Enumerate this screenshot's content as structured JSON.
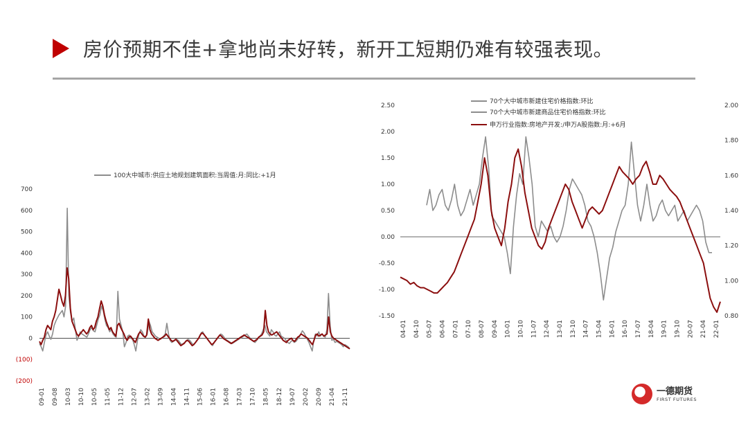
{
  "title": "房价预期不佳+拿地尚未好转，新开工短期仍难有较强表现。",
  "colors": {
    "accent": "#c00000",
    "gray_series": "#8c8c8c",
    "red_series": "#8b0e0e",
    "rule": "#a6a6a6"
  },
  "logo": {
    "name_cn": "一德期货",
    "name_en": "FIRST FUTURES",
    "icon": "globe-logo-icon"
  },
  "chart_data": [
    {
      "type": "line",
      "legend": [
        "100大中城市:供应土地规划建筑面积:当周值:月:同比:+1月"
      ],
      "legend_placement": "top",
      "ylim": [
        -200,
        700
      ],
      "yticks": [
        "700",
        "600",
        "500",
        "400",
        "300",
        "200",
        "100",
        "0",
        "(100)",
        "(200)"
      ],
      "xticks": [
        "09-01",
        "09-08",
        "10-03",
        "10-10",
        "10-05",
        "11-05",
        "11-12",
        "12-07",
        "13-02",
        "13-09",
        "14-04",
        "14-11",
        "15-06",
        "16-01",
        "16-08",
        "17-03",
        "17-10",
        "18-05",
        "18-12",
        "19-07",
        "20-02",
        "20-09",
        "21-04",
        "21-11"
      ],
      "series": [
        {
          "name": "100大中城市:供应土地规划建筑面积:当周值:月:同比:+1月",
          "color": "gray",
          "values": [
            -25,
            -40,
            -60,
            -20,
            15,
            30,
            10,
            -5,
            20,
            60,
            80,
            95,
            110,
            120,
            130,
            100,
            150,
            610,
            200,
            120,
            80,
            95,
            40,
            -10,
            10,
            30,
            20,
            15,
            10,
            5,
            20,
            40,
            50,
            35,
            30,
            60,
            90,
            110,
            150,
            130,
            90,
            60,
            50,
            30,
            40,
            20,
            10,
            5,
            220,
            90,
            60,
            30,
            -40,
            -20,
            10,
            15,
            0,
            -5,
            -30,
            -60,
            -10,
            20,
            40,
            30,
            10,
            5,
            20,
            80,
            60,
            30,
            20,
            10,
            5,
            0,
            -5,
            0,
            10,
            20,
            70,
            20,
            -10,
            -20,
            -15,
            -10,
            -5,
            -10,
            -20,
            -30,
            -25,
            -20,
            -10,
            -5,
            -10,
            -20,
            -30,
            -25,
            -15,
            -5,
            10,
            25,
            30,
            15,
            5,
            -5,
            -15,
            -25,
            -35,
            -20,
            -10,
            0,
            10,
            20,
            15,
            5,
            -5,
            -10,
            -15,
            -20,
            -25,
            -20,
            -15,
            -10,
            -5,
            0,
            5,
            10,
            15,
            20,
            10,
            0,
            -10,
            -15,
            -20,
            -10,
            0,
            10,
            20,
            40,
            60,
            30,
            20,
            10,
            40,
            30,
            15,
            10,
            20,
            30,
            10,
            5,
            0,
            -10,
            -20,
            -25,
            -15,
            -10,
            -20,
            -15,
            -5,
            5,
            20,
            35,
            25,
            10,
            -5,
            -20,
            -40,
            -60,
            -10,
            20,
            10,
            30,
            10,
            20,
            10,
            5,
            40,
            210,
            60,
            -10,
            -5,
            -20,
            -15,
            -20,
            -25,
            -30,
            -40,
            -30,
            -35,
            -40,
            -50
          ]
        },
        {
          "name": "",
          "color": "red",
          "values": [
            -15,
            -30,
            -10,
            5,
            40,
            60,
            50,
            40,
            80,
            100,
            130,
            180,
            230,
            200,
            170,
            150,
            200,
            330,
            280,
            140,
            80,
            60,
            40,
            20,
            10,
            20,
            30,
            40,
            30,
            20,
            30,
            50,
            60,
            40,
            50,
            80,
            100,
            140,
            175,
            150,
            110,
            80,
            60,
            40,
            50,
            30,
            20,
            10,
            60,
            70,
            50,
            35,
            20,
            0,
            -10,
            5,
            10,
            0,
            -10,
            -20,
            0,
            20,
            30,
            20,
            10,
            5,
            15,
            90,
            40,
            20,
            10,
            0,
            -5,
            -10,
            -5,
            0,
            5,
            10,
            20,
            10,
            0,
            -10,
            -15,
            -10,
            -5,
            -15,
            -25,
            -35,
            -30,
            -25,
            -15,
            -10,
            -15,
            -25,
            -35,
            -30,
            -20,
            -10,
            0,
            15,
            25,
            20,
            10,
            0,
            -10,
            -20,
            -30,
            -25,
            -15,
            -5,
            5,
            15,
            10,
            0,
            -5,
            -10,
            -15,
            -20,
            -25,
            -20,
            -15,
            -10,
            -5,
            0,
            5,
            10,
            15,
            10,
            5,
            0,
            -5,
            -10,
            -15,
            -10,
            -5,
            5,
            10,
            15,
            30,
            130,
            60,
            30,
            20,
            15,
            20,
            25,
            30,
            20,
            10,
            0,
            -10,
            -15,
            -20,
            -10,
            -5,
            0,
            -10,
            -15,
            -5,
            5,
            10,
            20,
            15,
            10,
            5,
            0,
            -10,
            -20,
            -30,
            -10,
            15,
            20,
            10,
            15,
            20,
            10,
            15,
            20,
            100,
            30,
            10,
            0,
            -5,
            -10,
            -15,
            -20,
            -25,
            -30,
            -35,
            -40,
            -45,
            -50
          ]
        }
      ]
    },
    {
      "type": "line",
      "legend": [
        "70个大中城市新建住宅价格指数:环比",
        "70个大中城市新建商品住宅价格指数:环比",
        "申万行业指数:房地产开发:/申万A股指数:月:+6月"
      ],
      "legend_placement": "top-right",
      "ylim_left": [
        -1.5,
        2.5
      ],
      "ylim_right": [
        0.8,
        2.0
      ],
      "yticks_left": [
        "2.50",
        "2.00",
        "1.50",
        "1.00",
        "0.50",
        "0.00",
        "-0.50",
        "-1.00",
        "-1.50"
      ],
      "yticks_right": [
        "2.00",
        "1.80",
        "1.60",
        "1.40",
        "1.20",
        "1.00",
        "0.80"
      ],
      "xticks": [
        "04-01",
        "04-10",
        "05-07",
        "06-04",
        "07-01",
        "07-10",
        "08-07",
        "09-04",
        "10-01",
        "10-10",
        "11-07",
        "12-04",
        "13-01",
        "13-10",
        "14-07",
        "15-04",
        "16-01",
        "16-10",
        "17-07",
        "18-04",
        "19-01",
        "19-10",
        "20-07",
        "21-04",
        "22-01"
      ],
      "series": [
        {
          "name": "70个大中城市新建住宅价格指数:环比",
          "axis": "left",
          "color": "gray",
          "values": [
            0.6,
            0.9,
            0.5,
            0.6,
            0.8,
            0.9,
            0.6,
            0.5,
            0.7,
            1.0,
            0.6,
            0.4,
            0.5,
            0.7,
            0.9,
            0.6,
            0.8,
            1.0,
            1.5,
            1.9,
            1.3,
            0.4,
            0.3,
            0.2,
            0.1,
            0.0,
            -0.3,
            -0.7,
            0.2,
            0.8,
            1.2,
            1.0,
            1.9,
            1.5,
            1.0,
            0.2,
            0.0,
            0.3,
            0.2,
            0.1,
            0.2,
            0.0,
            -0.1,
            0.0,
            0.2,
            0.5,
            0.9,
            1.1,
            1.0,
            0.9,
            0.8,
            0.6,
            0.3,
            0.2,
            0.0,
            -0.3,
            -0.7,
            -1.2,
            -0.8,
            -0.4,
            -0.2,
            0.1,
            0.3,
            0.5,
            0.6,
            1.0,
            1.8,
            1.2,
            0.6,
            0.3,
            0.6,
            1.0,
            0.6,
            0.3,
            0.4,
            0.6,
            0.7,
            0.5,
            0.4,
            0.5,
            0.6,
            0.3,
            0.4,
            0.5,
            0.3,
            0.4,
            0.5,
            0.6,
            0.5,
            0.3,
            -0.1,
            -0.3,
            -0.3
          ]
        },
        {
          "name": "70个大中城市新建商品住宅价格指数:环比",
          "axis": "left",
          "color": "gray",
          "values": []
        },
        {
          "name": "申万行业指数:房地产开发:/申万A股指数:月:+6月",
          "axis": "right",
          "color": "red",
          "values": [
            1.02,
            1.01,
            1.0,
            0.98,
            0.99,
            0.97,
            0.96,
            0.96,
            0.95,
            0.94,
            0.93,
            0.93,
            0.95,
            0.97,
            0.99,
            1.02,
            1.05,
            1.1,
            1.15,
            1.2,
            1.25,
            1.3,
            1.35,
            1.45,
            1.55,
            1.7,
            1.6,
            1.4,
            1.3,
            1.25,
            1.2,
            1.3,
            1.45,
            1.55,
            1.7,
            1.75,
            1.65,
            1.5,
            1.4,
            1.3,
            1.25,
            1.2,
            1.18,
            1.22,
            1.3,
            1.35,
            1.4,
            1.45,
            1.5,
            1.55,
            1.52,
            1.45,
            1.4,
            1.35,
            1.3,
            1.35,
            1.4,
            1.42,
            1.4,
            1.38,
            1.4,
            1.45,
            1.5,
            1.55,
            1.6,
            1.65,
            1.62,
            1.6,
            1.58,
            1.55,
            1.58,
            1.6,
            1.65,
            1.68,
            1.62,
            1.55,
            1.55,
            1.6,
            1.58,
            1.55,
            1.52,
            1.5,
            1.48,
            1.45,
            1.4,
            1.35,
            1.3,
            1.25,
            1.2,
            1.15,
            1.1,
            1.0,
            0.9,
            0.85,
            0.82,
            0.88
          ]
        }
      ]
    }
  ]
}
